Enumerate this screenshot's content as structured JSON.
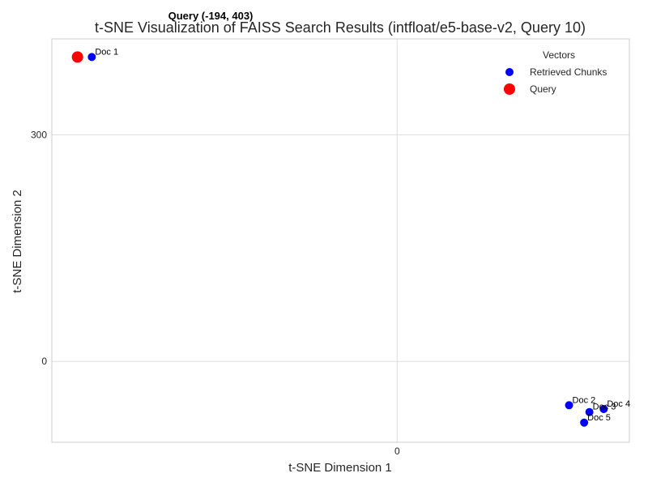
{
  "chart_data": {
    "type": "scatter",
    "title": "t-SNE Visualization of FAISS Search Results (intfloat/e5-base-v2, Query 10)",
    "xlabel": "t-SNE Dimension 1",
    "ylabel": "t-SNE Dimension 2",
    "xlim": [
      -458,
      308
    ],
    "ylim": [
      -107,
      427
    ],
    "xticks": [
      0
    ],
    "xtick_labels": [
      "0"
    ],
    "yticks": [
      0,
      300
    ],
    "ytick_labels": [
      "0",
      "300"
    ],
    "grid": true,
    "legend": {
      "title": "Vectors",
      "placement": "top-right",
      "entries": [
        "Retrieved Chunks",
        "Query"
      ]
    },
    "series": [
      {
        "name": "Retrieved Chunks",
        "color": "#0000ff",
        "points": [
          {
            "x": -405,
            "y": 403,
            "label": "Doc 1"
          },
          {
            "x": 228,
            "y": -58,
            "label": "Doc 2"
          },
          {
            "x": 255,
            "y": -67,
            "label": "Doc 3"
          },
          {
            "x": 274,
            "y": -63,
            "label": "Doc 4"
          },
          {
            "x": 248,
            "y": -81,
            "label": "Doc 5"
          }
        ]
      },
      {
        "name": "Query",
        "color": "#ff0000",
        "points": [
          {
            "x": -424,
            "y": 403
          }
        ]
      }
    ],
    "annotation": "Query (-194, 403)"
  }
}
